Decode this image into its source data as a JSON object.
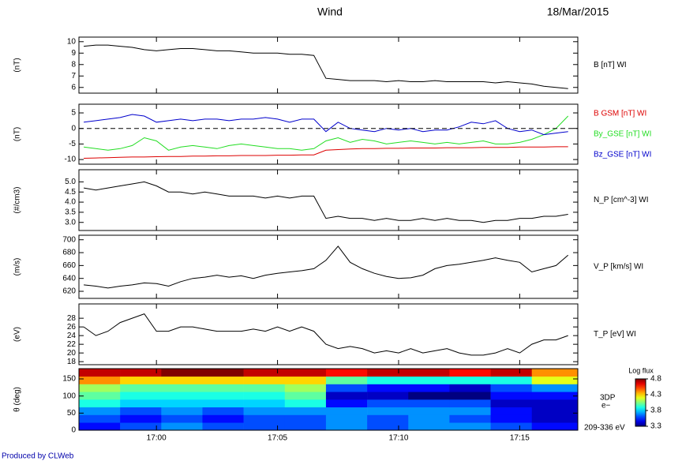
{
  "title": "Wind",
  "date": "18/Mar/2015",
  "footer": "Produced by CLWeb",
  "chart_data": [
    {
      "type": "line",
      "ylabel": "(nT)",
      "ylim": [
        5.5,
        10.4
      ],
      "yticks": [
        6,
        7,
        8,
        9,
        10
      ],
      "x": [
        -3,
        -2.5,
        -2,
        -1.5,
        -1,
        -0.5,
        0,
        0.5,
        1,
        1.5,
        2,
        2.5,
        3,
        3.5,
        4,
        4.5,
        5,
        5.5,
        6,
        6.5,
        7,
        7.5,
        8,
        8.5,
        9,
        9.5,
        10,
        10.5,
        11,
        11.5,
        12,
        12.5,
        13,
        13.5,
        14,
        14.5,
        15,
        15.5,
        16,
        16.5,
        17
      ],
      "series": [
        {
          "name": "B [nT] WI",
          "color": "#000000",
          "values": [
            9.6,
            9.7,
            9.7,
            9.6,
            9.5,
            9.3,
            9.2,
            9.3,
            9.4,
            9.4,
            9.3,
            9.2,
            9.2,
            9.1,
            9.0,
            9.0,
            9.0,
            8.9,
            8.9,
            8.8,
            6.8,
            6.7,
            6.6,
            6.6,
            6.6,
            6.5,
            6.6,
            6.5,
            6.5,
            6.6,
            6.5,
            6.5,
            6.5,
            6.5,
            6.4,
            6.5,
            6.4,
            6.3,
            6.1,
            6.0,
            5.9
          ]
        }
      ]
    },
    {
      "type": "line",
      "ylabel": "(nT)",
      "ylim": [
        -11.5,
        7.8
      ],
      "yticks": [
        5,
        0,
        -5,
        -10
      ],
      "hline": 0,
      "x": [
        -3,
        -2.5,
        -2,
        -1.5,
        -1,
        -0.5,
        0,
        0.5,
        1,
        1.5,
        2,
        2.5,
        3,
        3.5,
        4,
        4.5,
        5,
        5.5,
        6,
        6.5,
        7,
        7.5,
        8,
        8.5,
        9,
        9.5,
        10,
        10.5,
        11,
        11.5,
        12,
        12.5,
        13,
        13.5,
        14,
        14.5,
        15,
        15.5,
        16,
        16.5,
        17
      ],
      "series": [
        {
          "name": "B GSM [nT] WI",
          "color": "#dd0000",
          "values": [
            -9.6,
            -9.5,
            -9.4,
            -9.3,
            -9.2,
            -9.2,
            -9.1,
            -9.0,
            -9.0,
            -8.9,
            -8.9,
            -8.8,
            -8.8,
            -8.7,
            -8.7,
            -8.7,
            -8.6,
            -8.6,
            -8.5,
            -8.5,
            -7.0,
            -6.8,
            -6.6,
            -6.5,
            -6.5,
            -6.4,
            -6.4,
            -6.3,
            -6.3,
            -6.3,
            -6.2,
            -6.2,
            -6.2,
            -6.1,
            -6.1,
            -6.1,
            -6.0,
            -6.0,
            -6.0,
            -5.9,
            -5.9
          ]
        },
        {
          "name": "By_GSE [nT] WI",
          "color": "#22dd22",
          "values": [
            -6,
            -6.5,
            -7,
            -6.5,
            -5.5,
            -3,
            -4,
            -7,
            -6,
            -5.5,
            -6,
            -6.5,
            -5.5,
            -5,
            -5.5,
            -6,
            -6.5,
            -6.5,
            -7,
            -6.5,
            -4,
            -3,
            -4.5,
            -3.5,
            -4,
            -5,
            -4.5,
            -4,
            -4.5,
            -5,
            -4.5,
            -5,
            -4.5,
            -4,
            -5,
            -5,
            -4.5,
            -3.5,
            -2,
            0,
            4
          ]
        },
        {
          "name": "Bz_GSE [nT] WI",
          "color": "#0000cc",
          "values": [
            2,
            2.5,
            3,
            3.5,
            4.5,
            4,
            2,
            2.5,
            3,
            2.5,
            3,
            3,
            2.5,
            3,
            3,
            3.5,
            3,
            2,
            3,
            3,
            -1,
            2,
            0,
            -0.5,
            -1,
            0,
            -0.5,
            0,
            -1,
            -0.5,
            -0.5,
            0.5,
            2,
            1.5,
            2.5,
            0,
            -1,
            -0.5,
            -2,
            -1.5,
            -1
          ]
        }
      ]
    },
    {
      "type": "line",
      "ylabel": "(#/cm3)",
      "ylim": [
        2.6,
        5.6
      ],
      "yticks": [
        {
          "value": 5,
          "label": "5.0"
        },
        4.5,
        {
          "value": 4,
          "label": "4.0"
        },
        3.5,
        {
          "value": 3,
          "label": "3.0"
        }
      ],
      "x": [
        -3,
        -2.5,
        -2,
        -1.5,
        -1,
        -0.5,
        0,
        0.5,
        1,
        1.5,
        2,
        2.5,
        3,
        3.5,
        4,
        4.5,
        5,
        5.5,
        6,
        6.5,
        7,
        7.5,
        8,
        8.5,
        9,
        9.5,
        10,
        10.5,
        11,
        11.5,
        12,
        12.5,
        13,
        13.5,
        14,
        14.5,
        15,
        15.5,
        16,
        16.5,
        17
      ],
      "series": [
        {
          "name": "N_P [cm^-3] WI",
          "color": "#000000",
          "values": [
            4.7,
            4.6,
            4.7,
            4.8,
            4.9,
            5.0,
            4.8,
            4.5,
            4.5,
            4.4,
            4.5,
            4.4,
            4.3,
            4.3,
            4.3,
            4.2,
            4.3,
            4.2,
            4.3,
            4.3,
            3.2,
            3.3,
            3.2,
            3.2,
            3.1,
            3.2,
            3.1,
            3.1,
            3.2,
            3.1,
            3.2,
            3.1,
            3.1,
            3.0,
            3.1,
            3.1,
            3.2,
            3.2,
            3.3,
            3.3,
            3.4
          ]
        }
      ]
    },
    {
      "type": "line",
      "ylabel": "(m/s)",
      "ylim": [
        609,
        707
      ],
      "yticks": [
        700,
        680,
        660,
        640,
        620
      ],
      "x": [
        -3,
        -2.5,
        -2,
        -1.5,
        -1,
        -0.5,
        0,
        0.5,
        1,
        1.5,
        2,
        2.5,
        3,
        3.5,
        4,
        4.5,
        5,
        5.5,
        6,
        6.5,
        7,
        7.5,
        8,
        8.5,
        9,
        9.5,
        10,
        10.5,
        11,
        11.5,
        12,
        12.5,
        13,
        13.5,
        14,
        14.5,
        15,
        15.5,
        16,
        16.5,
        17
      ],
      "series": [
        {
          "name": "V_P [km/s] WI",
          "color": "#000000",
          "values": [
            630,
            628,
            625,
            628,
            630,
            633,
            632,
            628,
            635,
            640,
            642,
            645,
            642,
            644,
            640,
            645,
            648,
            650,
            652,
            655,
            668,
            690,
            665,
            655,
            648,
            643,
            640,
            641,
            645,
            655,
            660,
            662,
            665,
            668,
            672,
            668,
            665,
            650,
            655,
            660,
            676
          ]
        }
      ]
    },
    {
      "type": "line",
      "ylabel": "(eV)",
      "ylim": [
        17.3,
        31.3
      ],
      "yticks": [
        28,
        26,
        24,
        22,
        20,
        18
      ],
      "x": [
        -3,
        -2.5,
        -2,
        -1.5,
        -1,
        -0.5,
        0,
        0.5,
        1,
        1.5,
        2,
        2.5,
        3,
        3.5,
        4,
        4.5,
        5,
        5.5,
        6,
        6.5,
        7,
        7.5,
        8,
        8.5,
        9,
        9.5,
        10,
        10.5,
        11,
        11.5,
        12,
        12.5,
        13,
        13.5,
        14,
        14.5,
        15,
        15.5,
        16,
        16.5,
        17
      ],
      "series": [
        {
          "name": "T_P [eV] WI",
          "color": "#000000",
          "values": [
            26,
            24,
            25,
            27,
            28,
            29,
            25,
            25,
            26,
            26,
            25.5,
            25,
            25,
            25,
            25.5,
            25,
            26,
            25,
            26,
            25,
            22,
            21,
            21.5,
            21,
            20,
            20.5,
            20,
            21,
            20,
            20.5,
            21,
            20,
            19.5,
            19.5,
            20,
            21,
            20,
            22,
            23,
            23,
            24
          ]
        }
      ]
    },
    {
      "type": "heatmap",
      "ylabel": "θ (deg)",
      "ylim": [
        0,
        180
      ],
      "yticks": [
        0,
        50,
        100,
        150
      ],
      "xlim": [
        -3.2,
        17.4
      ],
      "xticks": [
        {
          "value": 0,
          "label": "17:00"
        },
        {
          "value": 5,
          "label": "17:05"
        },
        {
          "value": 10,
          "label": "17:10"
        },
        {
          "value": 15,
          "label": "17:15"
        }
      ],
      "x_edges": [
        -3.2,
        -1.5,
        0.2,
        1.9,
        3.6,
        5.3,
        7.0,
        8.7,
        10.4,
        12.1,
        13.8,
        15.5,
        17.4
      ],
      "y_edges": [
        0,
        22.5,
        45,
        67.5,
        90,
        112.5,
        135,
        157.5,
        180
      ],
      "values": [
        [
          3.5,
          3.6,
          3.7,
          3.6,
          3.6,
          3.6,
          3.7,
          3.6,
          3.7,
          3.7,
          3.6,
          3.5
        ],
        [
          3.6,
          3.5,
          3.6,
          3.5,
          3.6,
          3.6,
          3.7,
          3.6,
          3.7,
          3.6,
          3.5,
          3.4
        ],
        [
          3.7,
          3.6,
          3.7,
          3.6,
          3.7,
          3.7,
          3.7,
          3.7,
          3.7,
          3.7,
          3.5,
          3.4
        ],
        [
          3.9,
          3.8,
          3.8,
          3.8,
          3.8,
          3.9,
          3.5,
          3.6,
          3.6,
          3.6,
          3.4,
          3.4
        ],
        [
          4.0,
          3.9,
          3.9,
          3.9,
          3.9,
          4.0,
          3.4,
          3.4,
          3.3,
          3.3,
          3.5,
          3.5
        ],
        [
          4.1,
          4.0,
          4.0,
          4.0,
          4.0,
          4.1,
          3.6,
          3.5,
          3.5,
          3.4,
          3.6,
          3.7
        ],
        [
          4.4,
          4.3,
          4.3,
          4.3,
          4.3,
          4.3,
          4.0,
          3.9,
          3.9,
          3.9,
          3.9,
          4.2
        ],
        [
          4.7,
          4.7,
          4.8,
          4.8,
          4.7,
          4.7,
          4.6,
          4.7,
          4.7,
          4.6,
          4.7,
          4.4
        ]
      ],
      "clim": [
        3.3,
        4.8
      ],
      "cticks": [
        4.8,
        4.3,
        3.8,
        3.3
      ],
      "colorbar_label": "Log flux",
      "instrument": "3DP",
      "species": "e−",
      "energy": "209-336 eV"
    }
  ]
}
